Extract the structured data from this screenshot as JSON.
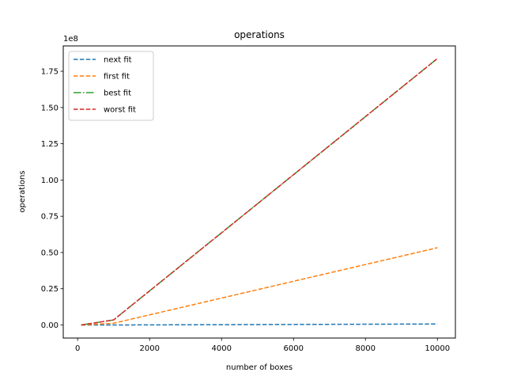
{
  "chart_data": {
    "type": "line",
    "title": "operations",
    "xlabel": "number of boxes",
    "ylabel": "operations",
    "y_offset_label": "1e8",
    "xlim": [
      -400,
      10500
    ],
    "ylim": [
      -0.09,
      1.925
    ],
    "x_ticks": [
      0,
      2000,
      4000,
      6000,
      8000,
      10000
    ],
    "x_tick_labels": [
      "0",
      "2000",
      "4000",
      "6000",
      "8000",
      "10000"
    ],
    "y_ticks": [
      0.0,
      0.25,
      0.5,
      0.75,
      1.0,
      1.25,
      1.5,
      1.75
    ],
    "y_tick_labels": [
      "0.00",
      "0.25",
      "0.50",
      "0.75",
      "1.00",
      "1.25",
      "1.50",
      "1.75"
    ],
    "grid": false,
    "legend_position": "top-left",
    "series": [
      {
        "name": "next fit",
        "color": "#1f77b4",
        "dash": "dashed",
        "x": [
          100,
          1000,
          10000
        ],
        "y": [
          0.0,
          0.0,
          0.0068
        ]
      },
      {
        "name": "first fit",
        "color": "#ff7f0e",
        "dash": "dashed",
        "x": [
          100,
          1000,
          10000
        ],
        "y": [
          0.0,
          0.012,
          0.533
        ]
      },
      {
        "name": "best fit",
        "color": "#2ca02c",
        "dash": "dashdot",
        "x": [
          100,
          1000,
          10000
        ],
        "y": [
          0.0,
          0.035,
          1.838
        ]
      },
      {
        "name": "worst fit",
        "color": "#d62728",
        "dash": "dashed",
        "x": [
          100,
          1000,
          10000
        ],
        "y": [
          0.0,
          0.035,
          1.838
        ]
      }
    ]
  }
}
